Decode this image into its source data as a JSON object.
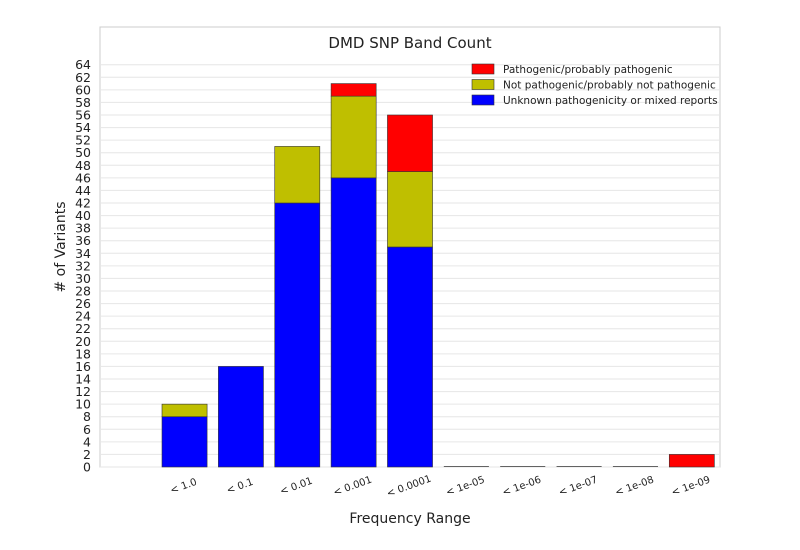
{
  "chart_data": {
    "type": "bar",
    "stacked": true,
    "title": "DMD SNP Band Count",
    "xlabel": "Frequency Range",
    "ylabel": "# of Variants",
    "ylim": [
      0,
      70
    ],
    "yticks": [
      0,
      2,
      4,
      6,
      8,
      10,
      12,
      14,
      16,
      18,
      20,
      22,
      24,
      26,
      28,
      30,
      32,
      34,
      36,
      38,
      40,
      42,
      44,
      46,
      48,
      50,
      52,
      54,
      56,
      58,
      60,
      62,
      64
    ],
    "grid": true,
    "legend_position": "top-right",
    "categories": [
      "",
      "< 1.0",
      "< 0.1",
      "< 0.01",
      "< 0.001",
      "< 0.0001",
      "< 1e-05",
      "< 1e-06",
      "< 1e-07",
      "< 1e-08",
      "< 1e-09"
    ],
    "series": [
      {
        "name": "Unknown pathogenicity or mixed reports",
        "color": "#0000ff",
        "values": [
          0,
          8,
          16,
          42,
          46,
          35,
          0,
          0,
          0,
          0,
          0
        ]
      },
      {
        "name": "Not pathogenic/probably not pathogenic",
        "color": "#bfbf00",
        "values": [
          0,
          2,
          0,
          9,
          13,
          12,
          0,
          0,
          0,
          0,
          0
        ]
      },
      {
        "name": "Pathogenic/probably pathogenic",
        "color": "#ff0000",
        "values": [
          0,
          0,
          0,
          0,
          2,
          9,
          0,
          0,
          0,
          0,
          2
        ]
      }
    ],
    "legend_order": [
      2,
      1,
      0
    ]
  }
}
